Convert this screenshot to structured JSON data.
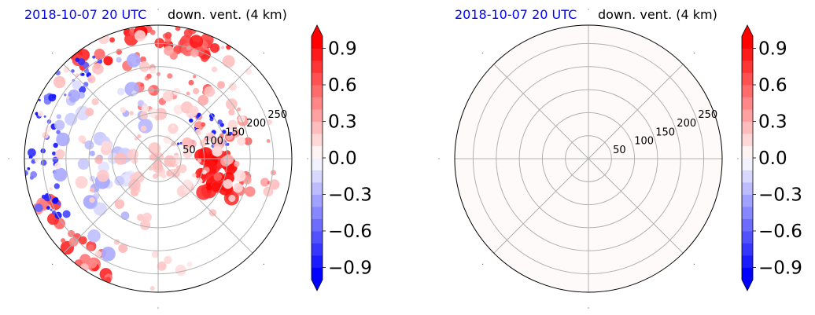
{
  "figure": {
    "panels": [
      {
        "time_label": "2018-10-07 20 UTC",
        "title": "down. vent. (4 km)"
      },
      {
        "time_label": "2018-10-07 20 UTC",
        "title": "down. vent. (4 km)"
      }
    ]
  },
  "colors": {
    "time_label": "#0000ff",
    "positive_max": "#ff0000",
    "negative_max": "#0000ff",
    "neutral": "#ffffff",
    "grid": "#b0b0b0",
    "uniform_fill": "#fdf0f0"
  },
  "chart_data": [
    {
      "type": "heatmap",
      "projection": "polar",
      "title": "down. vent. (4 km)",
      "time_label": "2018-10-07 20 UTC",
      "radial_ticks": [
        50,
        100,
        150,
        200,
        250
      ],
      "radial_max": 290,
      "angular_grid_deg": 45,
      "field": "spatially varying field: strong positive (red) cells to the east-southeast around r=100-150 km and along the northern rim; negative (blue) cells along the western rim and scattered east of center",
      "colorbar": {
        "ticks": [
          "0.9",
          "0.6",
          "0.3",
          "0.0",
          "−0.3",
          "−0.6",
          "−0.9"
        ],
        "tick_values": [
          0.9,
          0.6,
          0.3,
          0.0,
          -0.3,
          -0.6,
          -0.9
        ],
        "range": [
          -1.0,
          1.0
        ],
        "levels": 20,
        "extend": "both",
        "colormap": "bwr"
      }
    },
    {
      "type": "heatmap",
      "projection": "polar",
      "title": "down. vent. (4 km)",
      "time_label": "2018-10-07 20 UTC",
      "radial_ticks": [
        50,
        100,
        150,
        200,
        250
      ],
      "radial_max": 290,
      "angular_grid_deg": 45,
      "field_value": 0.02,
      "field": "uniform near-zero value (very light pink) everywhere",
      "colorbar": {
        "ticks": [
          "0.9",
          "0.6",
          "0.3",
          "0.0",
          "−0.3",
          "−0.6",
          "−0.9"
        ],
        "tick_values": [
          0.9,
          0.6,
          0.3,
          0.0,
          -0.3,
          -0.6,
          -0.9
        ],
        "range": [
          -1.0,
          1.0
        ],
        "levels": 20,
        "extend": "both",
        "colormap": "bwr"
      }
    }
  ]
}
